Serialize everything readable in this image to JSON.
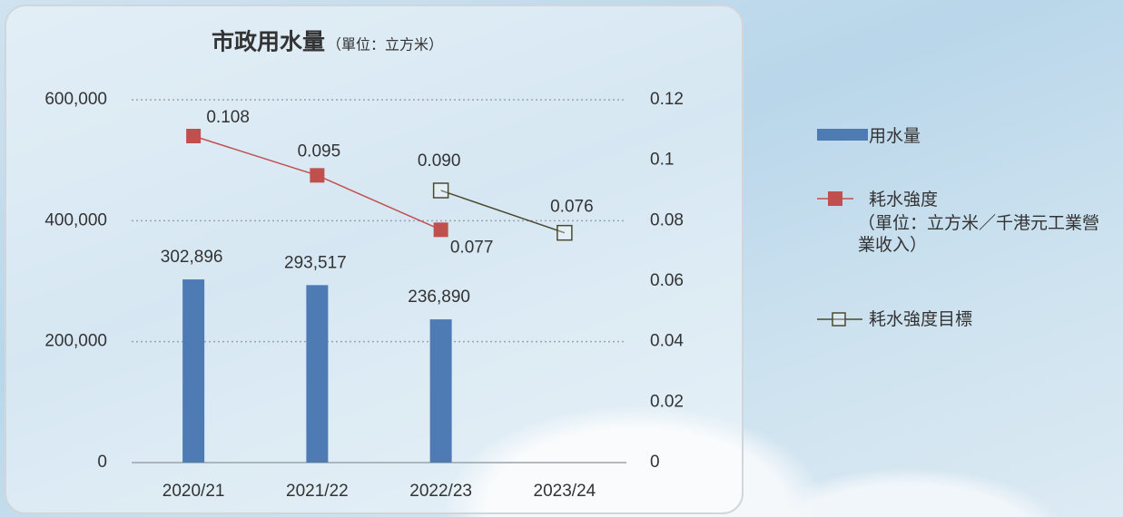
{
  "chart_data": {
    "type": "bar_line",
    "title": "市政用水量",
    "subtitle": "（單位：立方米）",
    "categories": [
      "2020/21",
      "2021/22",
      "2022/23",
      "2023/24"
    ],
    "series": [
      {
        "name": "用水量",
        "type": "bar",
        "color": "#4f7bb5",
        "values": [
          302896,
          293517,
          236890,
          null
        ],
        "value_labels": [
          "302,896",
          "293,517",
          "236,890",
          null
        ]
      },
      {
        "name": "耗水強度",
        "legend_note": "（單位：立方米／千港元工業營業收入）",
        "type": "line",
        "axis": "y2",
        "marker": "filled-square",
        "color": "#c0504d",
        "values": [
          0.108,
          0.095,
          0.077,
          null
        ]
      },
      {
        "name": "耗水強度目標",
        "type": "line",
        "axis": "y2",
        "marker": "hollow-square",
        "color": "#4a4a2e",
        "values": [
          null,
          null,
          0.09,
          0.076
        ],
        "value_labels": [
          null,
          null,
          "0.090",
          "0.076"
        ]
      }
    ],
    "ylim": [
      0,
      600000
    ],
    "yticks": [
      0,
      {
        "value": 200000,
        "label": "200,000"
      },
      {
        "value": 400000,
        "label": "400,000"
      },
      {
        "value": 600000,
        "label": "600,000"
      }
    ],
    "y2lim": [
      0,
      0.12
    ],
    "y2ticks": [
      0,
      0.02,
      0.04,
      0.06,
      0.08,
      0.1,
      0.12
    ],
    "grid": true,
    "legend": "right"
  }
}
